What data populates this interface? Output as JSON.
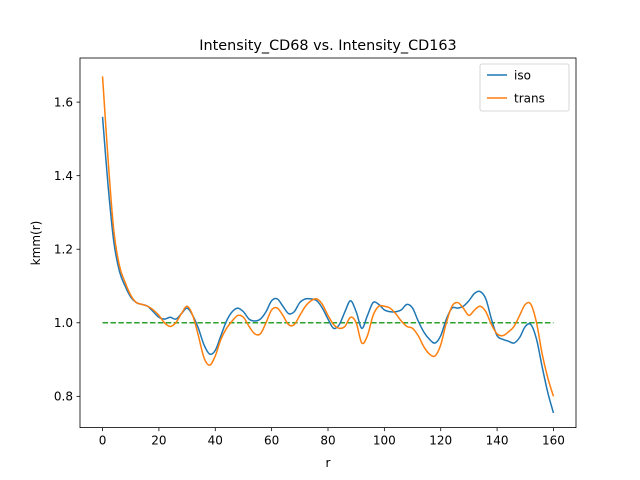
{
  "chart_data": {
    "type": "line",
    "title": "Intensity_CD68 vs. Intensity_CD163",
    "xlabel": "r",
    "ylabel": "kmm(r)",
    "xlim": [
      -8,
      168
    ],
    "ylim": [
      0.715,
      1.72
    ],
    "xticks": [
      0,
      20,
      40,
      60,
      80,
      100,
      120,
      140,
      160
    ],
    "yticks": [
      0.8,
      1.0,
      1.2,
      1.4,
      1.6
    ],
    "ytick_labels": [
      "0.8",
      "1.0",
      "1.2",
      "1.4",
      "1.6"
    ],
    "legend_position": "top-right",
    "grid": false,
    "series": [
      {
        "name": "iso",
        "color": "#1f77b4",
        "style": "solid",
        "x": [
          0,
          2,
          4,
          6,
          8,
          10,
          12,
          14,
          16,
          18,
          20,
          22,
          24,
          26,
          28,
          30,
          32,
          34,
          36,
          38,
          40,
          42,
          44,
          46,
          48,
          50,
          52,
          54,
          56,
          58,
          60,
          62,
          64,
          66,
          68,
          70,
          72,
          74,
          76,
          78,
          80,
          82,
          84,
          86,
          88,
          90,
          92,
          94,
          96,
          98,
          100,
          102,
          104,
          106,
          108,
          110,
          112,
          114,
          116,
          118,
          120,
          122,
          124,
          126,
          128,
          130,
          132,
          134,
          136,
          138,
          140,
          142,
          144,
          146,
          148,
          150,
          152,
          154,
          156,
          158,
          160
        ],
        "y": [
          1.56,
          1.37,
          1.22,
          1.14,
          1.1,
          1.07,
          1.055,
          1.05,
          1.045,
          1.03,
          1.015,
          1.01,
          1.015,
          1.01,
          1.025,
          1.04,
          1.02,
          0.985,
          0.94,
          0.915,
          0.925,
          0.965,
          1.005,
          1.03,
          1.04,
          1.03,
          1.01,
          1.005,
          1.01,
          1.03,
          1.06,
          1.065,
          1.045,
          1.025,
          1.03,
          1.055,
          1.065,
          1.065,
          1.06,
          1.04,
          1.01,
          0.985,
          0.995,
          1.03,
          1.06,
          1.03,
          0.985,
          1.02,
          1.055,
          1.05,
          1.035,
          1.03,
          1.03,
          1.035,
          1.05,
          1.04,
          1.005,
          0.975,
          0.955,
          0.945,
          0.965,
          1.01,
          1.04,
          1.04,
          1.045,
          1.06,
          1.08,
          1.085,
          1.065,
          1.01,
          0.965,
          0.955,
          0.95,
          0.945,
          0.96,
          0.99,
          0.995,
          0.955,
          0.88,
          0.81,
          0.755
        ]
      },
      {
        "name": "trans",
        "color": "#ff7f0e",
        "style": "solid",
        "x": [
          0,
          2,
          4,
          6,
          8,
          10,
          12,
          14,
          16,
          18,
          20,
          22,
          24,
          26,
          28,
          30,
          32,
          34,
          36,
          38,
          40,
          42,
          44,
          46,
          48,
          50,
          52,
          54,
          56,
          58,
          60,
          62,
          64,
          66,
          68,
          70,
          72,
          74,
          76,
          78,
          80,
          82,
          84,
          86,
          88,
          90,
          92,
          94,
          96,
          98,
          100,
          102,
          104,
          106,
          108,
          110,
          112,
          114,
          116,
          118,
          120,
          122,
          124,
          126,
          128,
          130,
          132,
          134,
          136,
          138,
          140,
          142,
          144,
          146,
          148,
          150,
          152,
          154,
          156,
          158,
          160
        ],
        "y": [
          1.67,
          1.44,
          1.25,
          1.155,
          1.11,
          1.075,
          1.055,
          1.05,
          1.045,
          1.035,
          1.02,
          1.0,
          0.99,
          1.0,
          1.025,
          1.045,
          1.02,
          0.965,
          0.905,
          0.885,
          0.91,
          0.955,
          0.985,
          1.005,
          1.02,
          1.015,
          0.99,
          0.97,
          0.97,
          1.0,
          1.035,
          1.04,
          1.02,
          0.995,
          0.995,
          1.02,
          1.045,
          1.06,
          1.065,
          1.05,
          1.02,
          0.995,
          0.985,
          0.99,
          1.015,
          1.0,
          0.945,
          0.965,
          1.02,
          1.045,
          1.045,
          1.04,
          1.025,
          1.005,
          0.99,
          0.985,
          0.965,
          0.935,
          0.915,
          0.91,
          0.94,
          1.0,
          1.045,
          1.055,
          1.04,
          1.02,
          1.035,
          1.045,
          1.03,
          0.995,
          0.97,
          0.965,
          0.975,
          0.99,
          1.02,
          1.05,
          1.05,
          1.0,
          0.915,
          0.85,
          0.8
        ]
      },
      {
        "name": "",
        "color": "#2ca02c",
        "style": "dashed",
        "x": [
          0,
          160
        ],
        "y": [
          1.0,
          1.0
        ]
      }
    ]
  }
}
